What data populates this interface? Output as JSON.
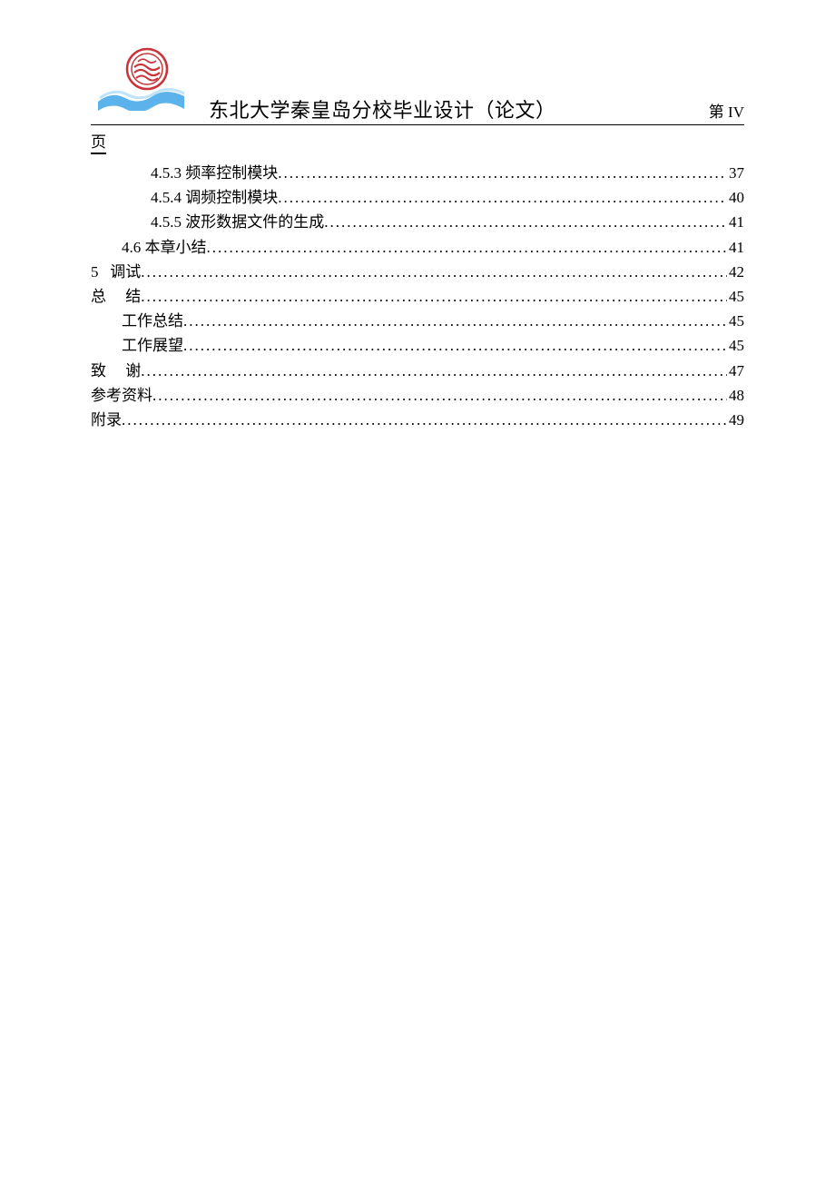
{
  "header": {
    "title": "东北大学秦皇岛分校毕业设计（论文）",
    "page_prefix": "第",
    "page_roman": "IV",
    "page_suffix": "页"
  },
  "logo": {
    "badge_color": "#c8343a",
    "ribbon_color": "#4aa8e8",
    "ribbon_light": "#9fd4f5"
  },
  "toc": {
    "entries": [
      {
        "indent": 2,
        "num": "4.5.3",
        "title": "频率控制模块",
        "page": "37"
      },
      {
        "indent": 2,
        "num": "4.5.4",
        "title": "调频控制模块",
        "page": "40"
      },
      {
        "indent": 2,
        "num": "4.5.5",
        "title": "波形数据文件的生成",
        "page": "41"
      },
      {
        "indent": 1,
        "num": "4.6",
        "title": "本章小结",
        "page": "41"
      },
      {
        "indent": 0,
        "num": "5",
        "title": "调试",
        "page": "42",
        "spaced_num": true
      },
      {
        "indent": 0,
        "num": "总",
        "title": "结",
        "page": "45",
        "spaced_pair": true
      },
      {
        "indent": 1,
        "num": "",
        "title": "工作总结",
        "page": "45"
      },
      {
        "indent": 1,
        "num": "",
        "title": "工作展望",
        "page": "45"
      },
      {
        "indent": 0,
        "num": "致",
        "title": "谢",
        "page": "47",
        "spaced_pair": true
      },
      {
        "indent": 0,
        "num": "",
        "title": "参考资料",
        "page": "48"
      },
      {
        "indent": 0,
        "num": "",
        "title": "附录",
        "page": "49"
      }
    ]
  },
  "style": {
    "font_size_body": 17,
    "font_size_title": 22,
    "text_color": "#000000",
    "background": "#ffffff",
    "underline_color": "#000000"
  }
}
